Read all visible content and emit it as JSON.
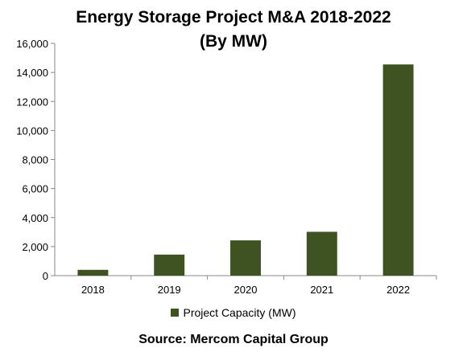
{
  "chart_data": {
    "type": "bar",
    "title": "Energy Storage Project M&A 2018-2022",
    "subtitle": "(By MW)",
    "categories": [
      "2018",
      "2019",
      "2020",
      "2021",
      "2022"
    ],
    "series": [
      {
        "name": "Project Capacity (MW)",
        "values": [
          400,
          1450,
          2430,
          3020,
          14550
        ]
      }
    ],
    "ylim": [
      0,
      16000
    ],
    "yticks": [
      "0",
      "2,000",
      "4,000",
      "6,000",
      "8,000",
      "10,000",
      "12,000",
      "14,000",
      "16,000"
    ],
    "ytick_values": [
      0,
      2000,
      4000,
      6000,
      8000,
      10000,
      12000,
      14000,
      16000
    ],
    "grid": false,
    "legend_position": "bottom",
    "bar_color": "#3f5322",
    "axis_color": "#888888"
  },
  "footer": {
    "source": "Source: Mercom Capital Group"
  }
}
